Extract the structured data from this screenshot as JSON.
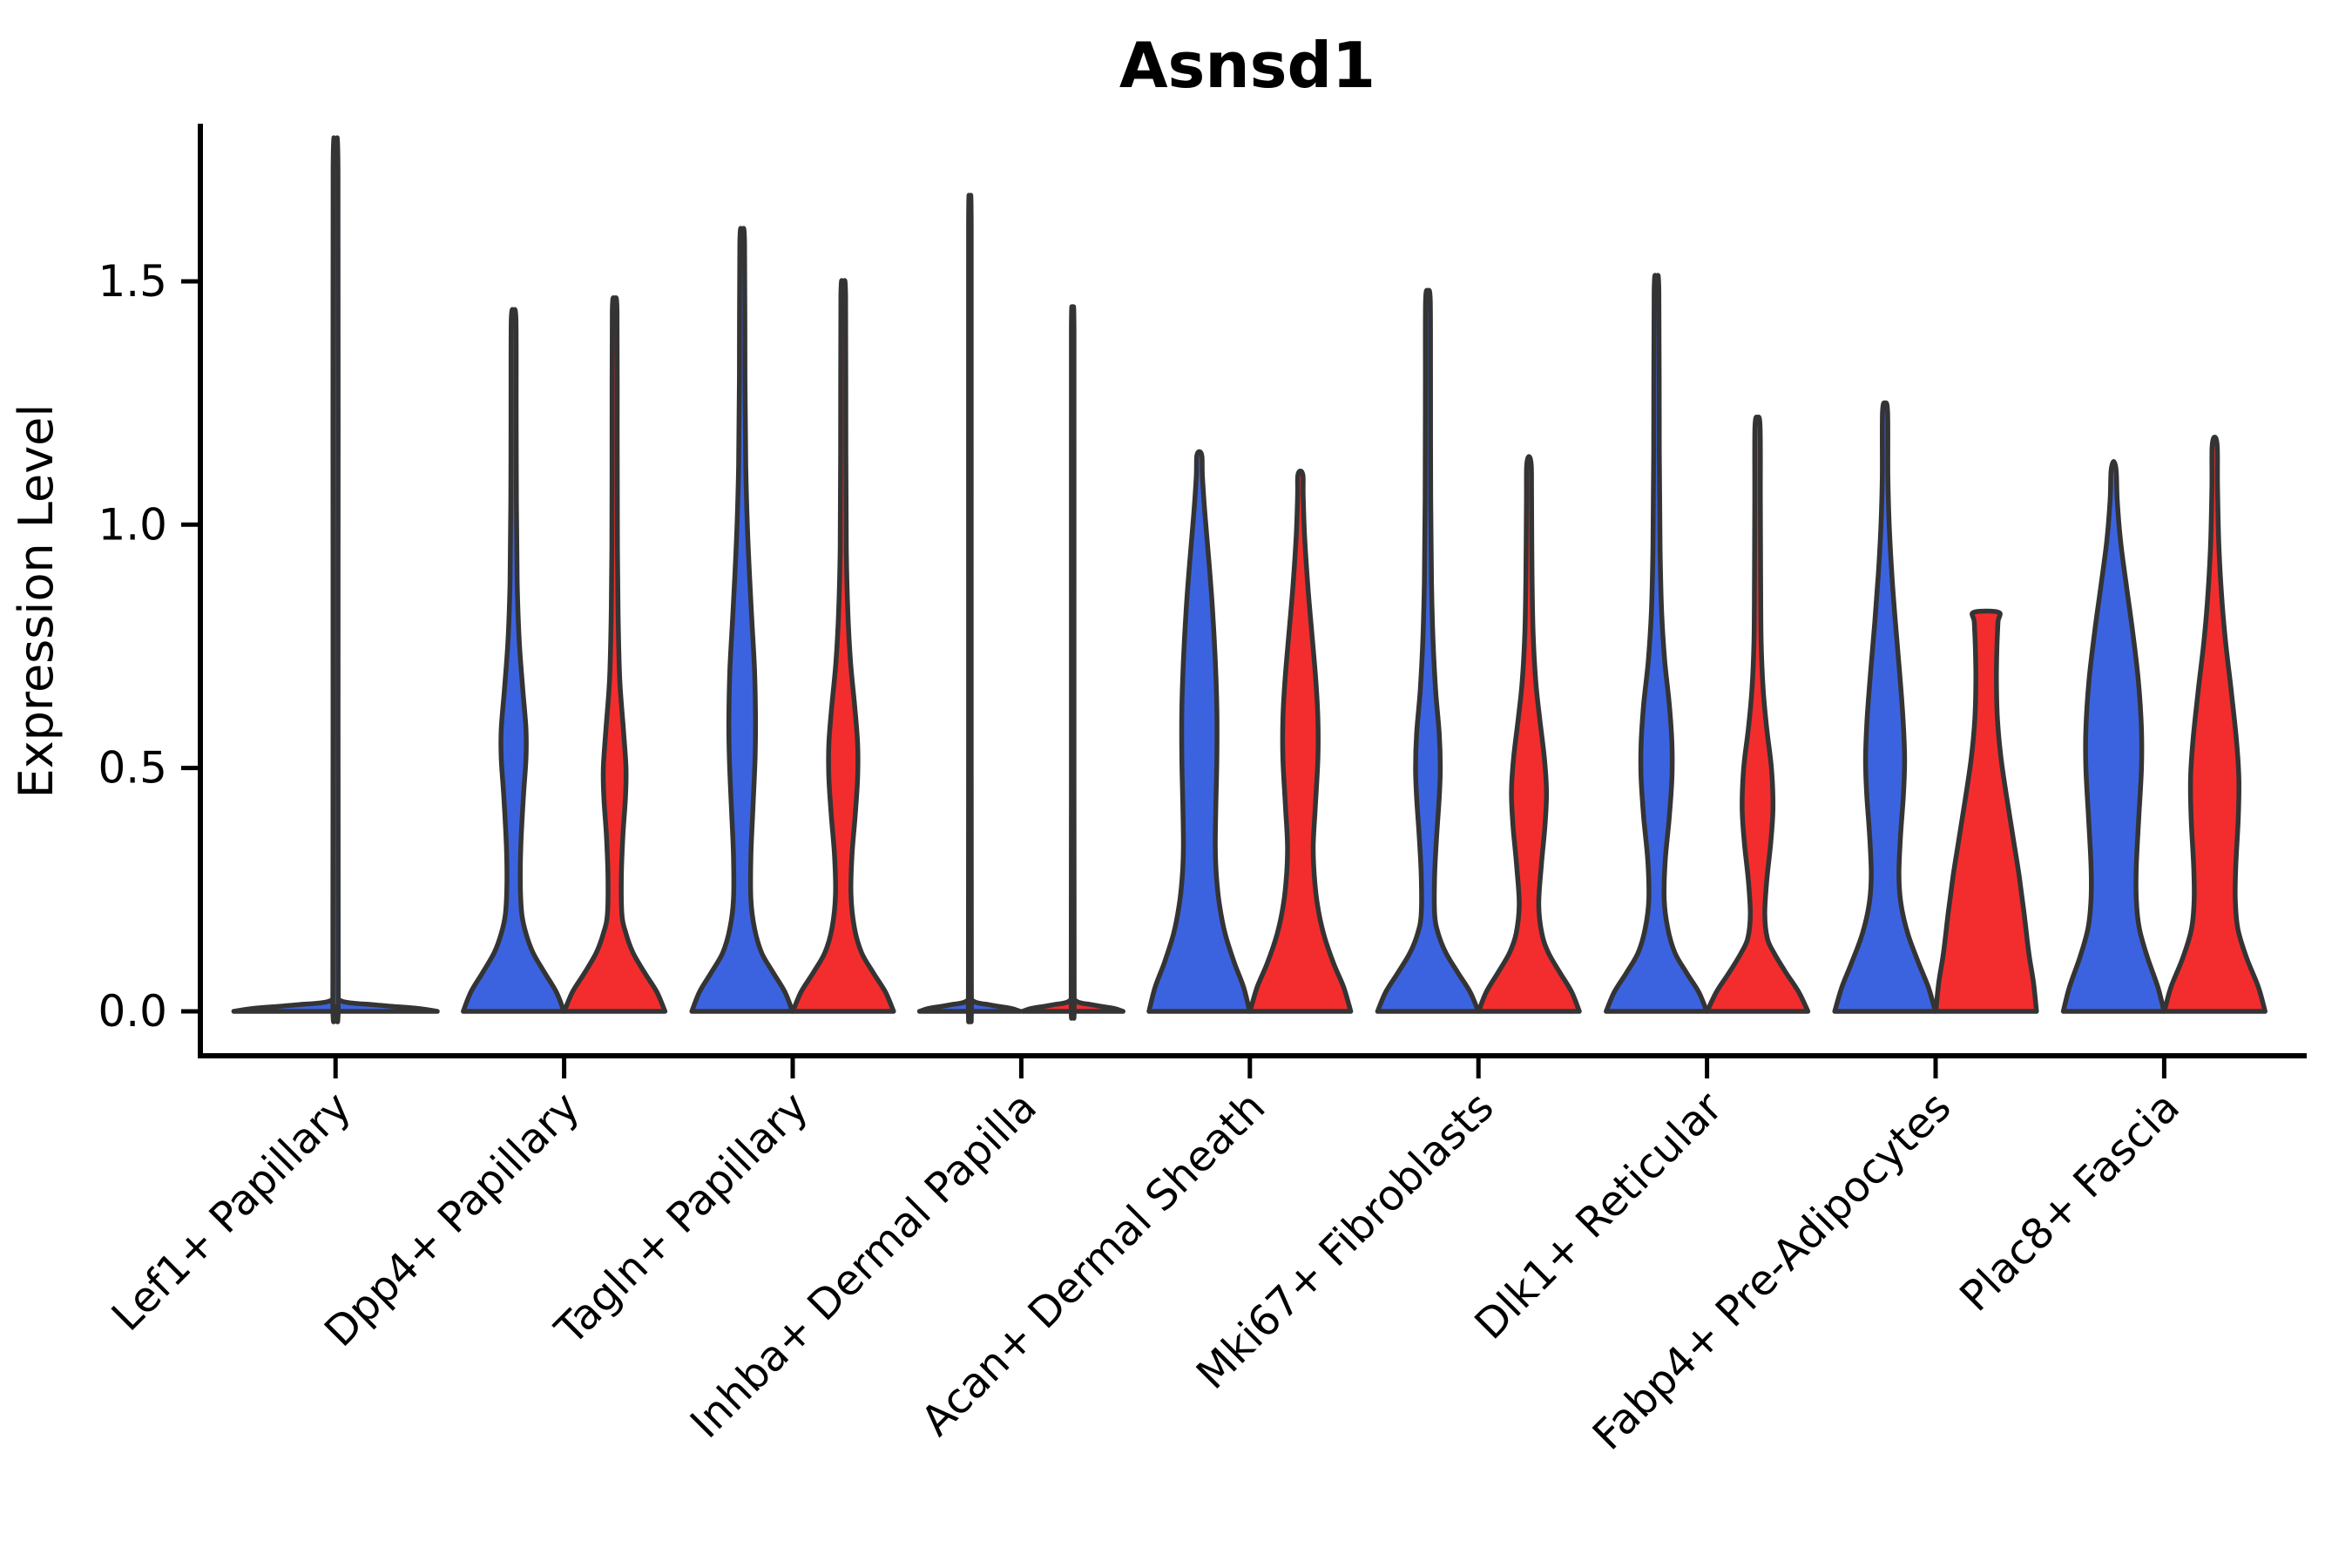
{
  "colors": {
    "violin_blue": "#3C63DF",
    "violin_red": "#F32D2D",
    "violin_outline": "#343434",
    "axis": "#000000"
  },
  "chart_data": {
    "type": "violin",
    "split": true,
    "title": "Asnsd1",
    "xlabel": "",
    "ylabel": "Expression Level",
    "ylim": [
      0,
      1.81
    ],
    "yticks": [
      0.0,
      0.5,
      1.0,
      1.5
    ],
    "ytick_labels": [
      "0.0",
      "0.5",
      "1.0",
      "1.5"
    ],
    "x_tick_rotation_deg": 45,
    "grid": false,
    "legend": "none",
    "categories": [
      "Lef1+ Papillary",
      "Dpp4+ Papillary",
      "Tagln+ Papillary",
      "Inhba+ Dermal Papilla",
      "Acan+ Dermal Sheath",
      "Mki67+ Fibroblasts",
      "Dlk1+ Reticular",
      "Fabp4+ Pre-Adipocytes",
      "Plac8+ Fascia"
    ],
    "violins": [
      {
        "category_index": 0,
        "group": "blue",
        "offset": 0,
        "wide": true,
        "max_value": 1.74,
        "profile": [
          [
            0,
            0.99
          ],
          [
            0.006,
            0.8
          ],
          [
            0.013,
            0.4
          ],
          [
            0.022,
            0.05
          ],
          [
            0.05,
            0.026
          ],
          [
            0.9,
            0.025
          ],
          [
            1.73,
            0.024
          ],
          [
            1.74,
            0
          ]
        ]
      },
      {
        "category_index": 1,
        "group": "blue",
        "offset": -58,
        "max_value": 1.44,
        "profile": [
          [
            0,
            0.98
          ],
          [
            0.04,
            0.83
          ],
          [
            0.08,
            0.6
          ],
          [
            0.12,
            0.38
          ],
          [
            0.16,
            0.24
          ],
          [
            0.2,
            0.16
          ],
          [
            0.26,
            0.13
          ],
          [
            0.34,
            0.14
          ],
          [
            0.44,
            0.19
          ],
          [
            0.52,
            0.24
          ],
          [
            0.58,
            0.24
          ],
          [
            0.66,
            0.18
          ],
          [
            0.76,
            0.11
          ],
          [
            0.88,
            0.07
          ],
          [
            1.05,
            0.055
          ],
          [
            1.25,
            0.05
          ],
          [
            1.42,
            0.045
          ],
          [
            1.44,
            0
          ]
        ]
      },
      {
        "category_index": 1,
        "group": "red",
        "offset": 58,
        "max_value": 1.46,
        "profile": [
          [
            0,
            0.98
          ],
          [
            0.04,
            0.82
          ],
          [
            0.08,
            0.58
          ],
          [
            0.12,
            0.36
          ],
          [
            0.16,
            0.22
          ],
          [
            0.2,
            0.14
          ],
          [
            0.28,
            0.13
          ],
          [
            0.36,
            0.16
          ],
          [
            0.44,
            0.21
          ],
          [
            0.5,
            0.22
          ],
          [
            0.58,
            0.17
          ],
          [
            0.68,
            0.1
          ],
          [
            0.8,
            0.07
          ],
          [
            0.95,
            0.055
          ],
          [
            1.2,
            0.05
          ],
          [
            1.44,
            0.045
          ],
          [
            1.46,
            0
          ]
        ]
      },
      {
        "category_index": 2,
        "group": "blue",
        "offset": -58,
        "max_value": 1.6,
        "profile": [
          [
            0,
            0.98
          ],
          [
            0.04,
            0.83
          ],
          [
            0.08,
            0.6
          ],
          [
            0.12,
            0.38
          ],
          [
            0.17,
            0.24
          ],
          [
            0.23,
            0.17
          ],
          [
            0.32,
            0.17
          ],
          [
            0.42,
            0.21
          ],
          [
            0.52,
            0.25
          ],
          [
            0.6,
            0.26
          ],
          [
            0.7,
            0.24
          ],
          [
            0.8,
            0.19
          ],
          [
            0.9,
            0.14
          ],
          [
            1.0,
            0.1
          ],
          [
            1.12,
            0.07
          ],
          [
            1.3,
            0.055
          ],
          [
            1.58,
            0.045
          ],
          [
            1.6,
            0
          ]
        ]
      },
      {
        "category_index": 2,
        "group": "red",
        "offset": 58,
        "max_value": 1.49,
        "profile": [
          [
            0,
            0.98
          ],
          [
            0.04,
            0.82
          ],
          [
            0.08,
            0.58
          ],
          [
            0.12,
            0.36
          ],
          [
            0.17,
            0.22
          ],
          [
            0.24,
            0.15
          ],
          [
            0.32,
            0.17
          ],
          [
            0.4,
            0.23
          ],
          [
            0.48,
            0.28
          ],
          [
            0.55,
            0.28
          ],
          [
            0.63,
            0.22
          ],
          [
            0.72,
            0.14
          ],
          [
            0.82,
            0.09
          ],
          [
            0.95,
            0.06
          ],
          [
            1.15,
            0.05
          ],
          [
            1.47,
            0.045
          ],
          [
            1.49,
            0
          ]
        ]
      },
      {
        "category_index": 3,
        "group": "blue",
        "offset": -59,
        "max_value": 1.63,
        "profile": [
          [
            0,
            0.98
          ],
          [
            0.006,
            0.8
          ],
          [
            0.013,
            0.4
          ],
          [
            0.022,
            0.06
          ],
          [
            0.05,
            0.028
          ],
          [
            0.9,
            0.026
          ],
          [
            1.62,
            0.025
          ],
          [
            1.63,
            0
          ]
        ]
      },
      {
        "category_index": 3,
        "group": "red",
        "offset": 59,
        "max_value": 1.41,
        "profile": [
          [
            0,
            0.98
          ],
          [
            0.006,
            0.8
          ],
          [
            0.013,
            0.4
          ],
          [
            0.022,
            0.06
          ],
          [
            0.05,
            0.028
          ],
          [
            0.8,
            0.026
          ],
          [
            1.4,
            0.025
          ],
          [
            1.41,
            0
          ]
        ]
      },
      {
        "category_index": 4,
        "group": "blue",
        "offset": -58,
        "max_value": 1.15,
        "profile": [
          [
            0,
            0.98
          ],
          [
            0.05,
            0.86
          ],
          [
            0.1,
            0.68
          ],
          [
            0.16,
            0.5
          ],
          [
            0.22,
            0.39
          ],
          [
            0.28,
            0.33
          ],
          [
            0.34,
            0.31
          ],
          [
            0.42,
            0.32
          ],
          [
            0.52,
            0.34
          ],
          [
            0.62,
            0.34
          ],
          [
            0.72,
            0.31
          ],
          [
            0.82,
            0.26
          ],
          [
            0.92,
            0.19
          ],
          [
            1.02,
            0.11
          ],
          [
            1.1,
            0.06
          ],
          [
            1.14,
            0.05
          ],
          [
            1.15,
            0
          ]
        ]
      },
      {
        "category_index": 4,
        "group": "red",
        "offset": 58,
        "max_value": 1.11,
        "profile": [
          [
            0,
            0.98
          ],
          [
            0.05,
            0.84
          ],
          [
            0.1,
            0.64
          ],
          [
            0.16,
            0.45
          ],
          [
            0.22,
            0.33
          ],
          [
            0.28,
            0.27
          ],
          [
            0.34,
            0.25
          ],
          [
            0.42,
            0.29
          ],
          [
            0.52,
            0.34
          ],
          [
            0.6,
            0.34
          ],
          [
            0.68,
            0.3
          ],
          [
            0.78,
            0.22
          ],
          [
            0.88,
            0.14
          ],
          [
            0.98,
            0.08
          ],
          [
            1.06,
            0.055
          ],
          [
            1.1,
            0.05
          ],
          [
            1.11,
            0
          ]
        ]
      },
      {
        "category_index": 5,
        "group": "blue",
        "offset": -58,
        "max_value": 1.48,
        "profile": [
          [
            0,
            0.98
          ],
          [
            0.04,
            0.82
          ],
          [
            0.08,
            0.58
          ],
          [
            0.12,
            0.35
          ],
          [
            0.16,
            0.2
          ],
          [
            0.2,
            0.13
          ],
          [
            0.28,
            0.13
          ],
          [
            0.36,
            0.17
          ],
          [
            0.44,
            0.22
          ],
          [
            0.5,
            0.24
          ],
          [
            0.57,
            0.22
          ],
          [
            0.66,
            0.15
          ],
          [
            0.76,
            0.1
          ],
          [
            0.88,
            0.07
          ],
          [
            1.05,
            0.055
          ],
          [
            1.3,
            0.05
          ],
          [
            1.46,
            0.045
          ],
          [
            1.48,
            0
          ]
        ]
      },
      {
        "category_index": 5,
        "group": "red",
        "offset": 58,
        "max_value": 1.14,
        "profile": [
          [
            0,
            0.98
          ],
          [
            0.04,
            0.83
          ],
          [
            0.08,
            0.6
          ],
          [
            0.12,
            0.38
          ],
          [
            0.16,
            0.25
          ],
          [
            0.22,
            0.19
          ],
          [
            0.3,
            0.24
          ],
          [
            0.38,
            0.31
          ],
          [
            0.45,
            0.34
          ],
          [
            0.52,
            0.3
          ],
          [
            0.6,
            0.21
          ],
          [
            0.68,
            0.13
          ],
          [
            0.78,
            0.08
          ],
          [
            0.9,
            0.06
          ],
          [
            1.05,
            0.05
          ],
          [
            1.12,
            0.045
          ],
          [
            1.14,
            0
          ]
        ]
      },
      {
        "category_index": 6,
        "group": "blue",
        "offset": -58,
        "max_value": 1.5,
        "profile": [
          [
            0,
            0.98
          ],
          [
            0.04,
            0.82
          ],
          [
            0.08,
            0.58
          ],
          [
            0.12,
            0.36
          ],
          [
            0.17,
            0.22
          ],
          [
            0.23,
            0.15
          ],
          [
            0.31,
            0.17
          ],
          [
            0.4,
            0.25
          ],
          [
            0.48,
            0.3
          ],
          [
            0.55,
            0.3
          ],
          [
            0.63,
            0.25
          ],
          [
            0.72,
            0.16
          ],
          [
            0.82,
            0.1
          ],
          [
            0.95,
            0.07
          ],
          [
            1.15,
            0.055
          ],
          [
            1.48,
            0.045
          ],
          [
            1.5,
            0
          ]
        ]
      },
      {
        "category_index": 6,
        "group": "red",
        "offset": 58,
        "max_value": 1.22,
        "profile": [
          [
            0,
            0.98
          ],
          [
            0.04,
            0.8
          ],
          [
            0.08,
            0.55
          ],
          [
            0.12,
            0.32
          ],
          [
            0.15,
            0.19
          ],
          [
            0.2,
            0.14
          ],
          [
            0.27,
            0.18
          ],
          [
            0.35,
            0.26
          ],
          [
            0.42,
            0.3
          ],
          [
            0.5,
            0.27
          ],
          [
            0.58,
            0.18
          ],
          [
            0.66,
            0.11
          ],
          [
            0.76,
            0.07
          ],
          [
            0.9,
            0.06
          ],
          [
            1.05,
            0.055
          ],
          [
            1.2,
            0.05
          ],
          [
            1.22,
            0
          ]
        ]
      },
      {
        "category_index": 7,
        "group": "blue",
        "offset": -58,
        "max_value": 1.25,
        "profile": [
          [
            0,
            0.98
          ],
          [
            0.05,
            0.84
          ],
          [
            0.1,
            0.65
          ],
          [
            0.16,
            0.44
          ],
          [
            0.22,
            0.31
          ],
          [
            0.28,
            0.27
          ],
          [
            0.36,
            0.3
          ],
          [
            0.45,
            0.36
          ],
          [
            0.52,
            0.38
          ],
          [
            0.6,
            0.35
          ],
          [
            0.7,
            0.28
          ],
          [
            0.8,
            0.2
          ],
          [
            0.9,
            0.13
          ],
          [
            1.0,
            0.08
          ],
          [
            1.1,
            0.055
          ],
          [
            1.23,
            0.05
          ],
          [
            1.25,
            0
          ]
        ]
      },
      {
        "category_index": 7,
        "group": "red",
        "offset": 58,
        "max_value": 0.82,
        "flat_top": true,
        "profile": [
          [
            0,
            0.98
          ],
          [
            0.06,
            0.92
          ],
          [
            0.12,
            0.83
          ],
          [
            0.2,
            0.74
          ],
          [
            0.28,
            0.64
          ],
          [
            0.36,
            0.52
          ],
          [
            0.44,
            0.4
          ],
          [
            0.52,
            0.29
          ],
          [
            0.6,
            0.22
          ],
          [
            0.68,
            0.2
          ],
          [
            0.75,
            0.21
          ],
          [
            0.8,
            0.23
          ],
          [
            0.82,
            0.24
          ]
        ]
      },
      {
        "category_index": 8,
        "group": "blue",
        "offset": -58,
        "max_value": 1.13,
        "profile": [
          [
            0,
            0.98
          ],
          [
            0.05,
            0.86
          ],
          [
            0.11,
            0.66
          ],
          [
            0.17,
            0.5
          ],
          [
            0.23,
            0.44
          ],
          [
            0.3,
            0.44
          ],
          [
            0.4,
            0.49
          ],
          [
            0.5,
            0.54
          ],
          [
            0.58,
            0.54
          ],
          [
            0.68,
            0.48
          ],
          [
            0.78,
            0.37
          ],
          [
            0.88,
            0.24
          ],
          [
            0.97,
            0.13
          ],
          [
            1.05,
            0.07
          ],
          [
            1.11,
            0.05
          ],
          [
            1.13,
            0
          ]
        ]
      },
      {
        "category_index": 8,
        "group": "red",
        "offset": 58,
        "max_value": 1.18,
        "profile": [
          [
            0,
            0.98
          ],
          [
            0.05,
            0.85
          ],
          [
            0.11,
            0.62
          ],
          [
            0.17,
            0.45
          ],
          [
            0.23,
            0.4
          ],
          [
            0.3,
            0.41
          ],
          [
            0.4,
            0.46
          ],
          [
            0.48,
            0.47
          ],
          [
            0.56,
            0.42
          ],
          [
            0.66,
            0.32
          ],
          [
            0.76,
            0.21
          ],
          [
            0.86,
            0.13
          ],
          [
            0.96,
            0.08
          ],
          [
            1.08,
            0.055
          ],
          [
            1.16,
            0.05
          ],
          [
            1.18,
            0
          ]
        ]
      }
    ]
  }
}
